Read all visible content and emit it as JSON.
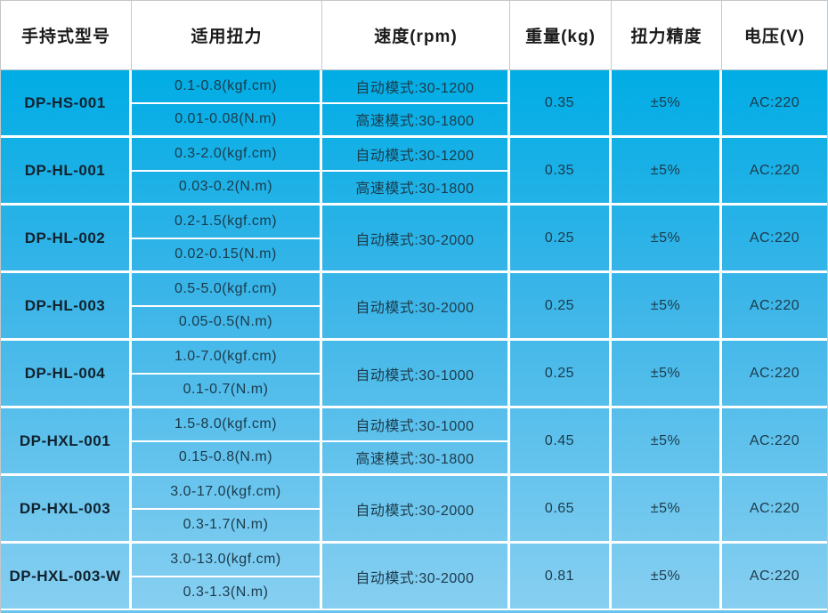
{
  "table": {
    "headers": {
      "model": "手持式型号",
      "torque": "适用扭力",
      "speed": "速度(rpm)",
      "weight": "重量(kg)",
      "accuracy": "扭力精度",
      "voltage": "电压(V)"
    },
    "rows": [
      {
        "model": "DP-HS-001",
        "torque_kgf": "0.1-0.8(kgf.cm)",
        "torque_nm": "0.01-0.08(N.m)",
        "speed_auto": "自动模式:30-1200",
        "speed_high": "高速模式:30-1800",
        "weight": "0.35",
        "accuracy": "±5%",
        "voltage": "AC:220"
      },
      {
        "model": "DP-HL-001",
        "torque_kgf": "0.3-2.0(kgf.cm)",
        "torque_nm": "0.03-0.2(N.m)",
        "speed_auto": "自动模式:30-1200",
        "speed_high": "高速模式:30-1800",
        "weight": "0.35",
        "accuracy": "±5%",
        "voltage": "AC:220"
      },
      {
        "model": "DP-HL-002",
        "torque_kgf": "0.2-1.5(kgf.cm)",
        "torque_nm": "0.02-0.15(N.m)",
        "speed_auto": "自动模式:30-2000",
        "weight": "0.25",
        "accuracy": "±5%",
        "voltage": "AC:220"
      },
      {
        "model": "DP-HL-003",
        "torque_kgf": "0.5-5.0(kgf.cm)",
        "torque_nm": "0.05-0.5(N.m)",
        "speed_auto": "自动模式:30-2000",
        "weight": "0.25",
        "accuracy": "±5%",
        "voltage": "AC:220"
      },
      {
        "model": "DP-HL-004",
        "torque_kgf": "1.0-7.0(kgf.cm)",
        "torque_nm": "0.1-0.7(N.m)",
        "speed_auto": "自动模式:30-1000",
        "weight": "0.25",
        "accuracy": "±5%",
        "voltage": "AC:220"
      },
      {
        "model": "DP-HXL-001",
        "torque_kgf": "1.5-8.0(kgf.cm)",
        "torque_nm": "0.15-0.8(N.m)",
        "speed_auto": "自动模式:30-1000",
        "speed_high": "高速模式:30-1800",
        "weight": "0.45",
        "accuracy": "±5%",
        "voltage": "AC:220"
      },
      {
        "model": "DP-HXL-003",
        "torque_kgf": "3.0-17.0(kgf.cm)",
        "torque_nm": "0.3-1.7(N.m)",
        "speed_auto": "自动模式:30-2000",
        "weight": "0.65",
        "accuracy": "±5%",
        "voltage": "AC:220"
      },
      {
        "model": "DP-HXL-003-W",
        "torque_kgf": "3.0-13.0(kgf.cm)",
        "torque_nm": "0.3-1.3(N.m)",
        "speed_auto": "自动模式:30-2000",
        "weight": "0.81",
        "accuracy": "±5%",
        "voltage": "AC:220"
      }
    ],
    "colors": {
      "body_gradient_top": "#00ade5",
      "body_gradient_bottom": "#87cff1",
      "separator": "#ffffff",
      "header_bg": "#ffffff",
      "header_text": "#1a1a1a",
      "body_text": "#1c3a4a",
      "bottom_strip": "#68c3ed"
    }
  }
}
